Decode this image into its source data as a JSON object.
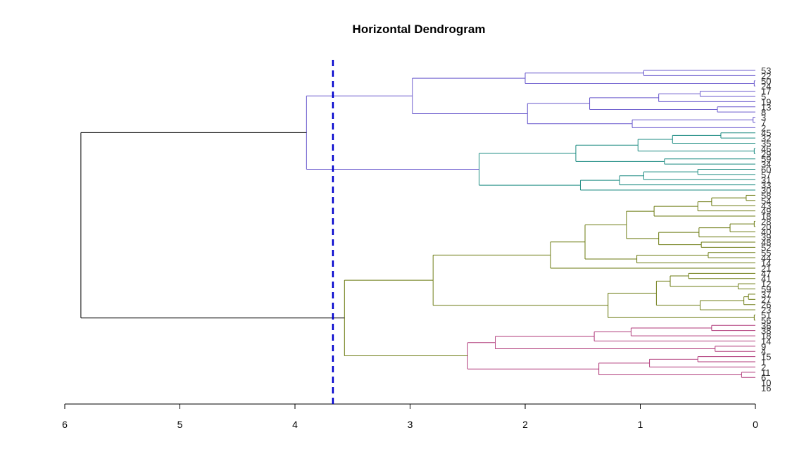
{
  "chart_data": {
    "type": "dendrogram",
    "orientation": "horizontal",
    "title": "Horizontal Dendrogram",
    "xlabel": "",
    "ylabel": "",
    "x_ticks": [
      6,
      5,
      4,
      3,
      2,
      1,
      0
    ],
    "xlim": [
      6,
      0
    ],
    "cut_height": 3.67,
    "cut_color": "#0000cc",
    "root_color": "#000000",
    "cluster_colors": {
      "blue": "#6a5acd",
      "teal": "#1a8a80",
      "olive": "#6b7a10",
      "magenta": "#b03a7a"
    },
    "leaves": [
      "53",
      "22",
      "50",
      "24",
      "17",
      "5",
      "19",
      "13",
      "8",
      "3",
      "7",
      "2",
      "45",
      "32",
      "35",
      "46",
      "29",
      "59",
      "34",
      "60",
      "57",
      "31",
      "33",
      "30",
      "58",
      "54",
      "43",
      "49",
      "18",
      "28",
      "20",
      "40",
      "39",
      "48",
      "52",
      "55",
      "44",
      "14",
      "21",
      "47",
      "41",
      "12",
      "59",
      "37",
      "27",
      "26",
      "23",
      "51",
      "56",
      "36",
      "38",
      "18",
      "14",
      "9",
      "4",
      "15",
      "1",
      "2",
      "11",
      "6",
      "10",
      "16"
    ],
    "tree": {
      "h": 5.86,
      "c": "root",
      "ch": [
        {
          "h": 3.9,
          "c": "blue",
          "ch": [
            {
              "h": 2.98,
              "c": "blue",
              "ch": [
                {
                  "h": 2.0,
                  "c": "blue",
                  "ch": [
                    {
                      "h": 0.97,
                      "c": "blue",
                      "ch": [
                        0,
                        1
                      ]
                    },
                    {
                      "h": 0.01,
                      "c": "blue",
                      "ch": [
                        2,
                        3
                      ]
                    }
                  ]
                },
                {
                  "h": 1.98,
                  "c": "blue",
                  "ch": [
                    {
                      "h": 1.44,
                      "c": "blue",
                      "ch": [
                        {
                          "h": 0.84,
                          "c": "blue",
                          "ch": [
                            {
                              "h": 0.48,
                              "c": "blue",
                              "ch": [
                                4,
                                5
                              ]
                            },
                            6
                          ]
                        },
                        {
                          "h": 0.33,
                          "c": "blue",
                          "ch": [
                            7,
                            8
                          ]
                        }
                      ]
                    },
                    {
                      "h": 1.07,
                      "c": "blue",
                      "ch": [
                        {
                          "h": 0.02,
                          "c": "blue",
                          "ch": [
                            9,
                            10
                          ]
                        },
                        11
                      ]
                    }
                  ]
                }
              ]
            },
            {
              "h": 2.4,
              "c": "teal",
              "ch": [
                {
                  "h": 1.56,
                  "c": "teal",
                  "ch": [
                    {
                      "h": 1.02,
                      "c": "teal",
                      "ch": [
                        {
                          "h": 0.72,
                          "c": "teal",
                          "ch": [
                            {
                              "h": 0.3,
                              "c": "teal",
                              "ch": [
                                12,
                                13
                              ]
                            },
                            14
                          ]
                        },
                        {
                          "h": 0.01,
                          "c": "teal",
                          "ch": [
                            15,
                            16
                          ]
                        }
                      ]
                    },
                    {
                      "h": 0.79,
                      "c": "teal",
                      "ch": [
                        17,
                        18
                      ]
                    }
                  ]
                },
                {
                  "h": 1.52,
                  "c": "teal",
                  "ch": [
                    {
                      "h": 1.18,
                      "c": "teal",
                      "ch": [
                        {
                          "h": 0.97,
                          "c": "teal",
                          "ch": [
                            {
                              "h": 0.5,
                              "c": "teal",
                              "ch": [
                                19,
                                20
                              ]
                            },
                            21
                          ]
                        },
                        22
                      ]
                    },
                    23
                  ]
                }
              ]
            }
          ]
        },
        {
          "h": 3.57,
          "c": "olive",
          "ch": [
            {
              "h": 2.8,
              "c": "olive",
              "ch": [
                {
                  "h": 1.78,
                  "c": "olive",
                  "ch": [
                    {
                      "h": 1.48,
                      "c": "olive",
                      "ch": [
                        {
                          "h": 1.12,
                          "c": "olive",
                          "ch": [
                            {
                              "h": 0.88,
                              "c": "olive",
                              "ch": [
                                {
                                  "h": 0.5,
                                  "c": "olive",
                                  "ch": [
                                    {
                                      "h": 0.38,
                                      "c": "olive",
                                      "ch": [
                                        {
                                          "h": 0.08,
                                          "c": "olive",
                                          "ch": [
                                            24,
                                            25
                                          ]
                                        },
                                        26
                                      ]
                                    },
                                    27
                                  ]
                                },
                                28
                              ]
                            },
                            {
                              "h": 0.84,
                              "c": "olive",
                              "ch": [
                                {
                                  "h": 0.49,
                                  "c": "olive",
                                  "ch": [
                                    {
                                      "h": 0.22,
                                      "c": "olive",
                                      "ch": [
                                        {
                                          "h": 0.01,
                                          "c": "olive",
                                          "ch": [
                                            29,
                                            30
                                          ]
                                        },
                                        31
                                      ]
                                    },
                                    32
                                  ]
                                },
                                {
                                  "h": 0.47,
                                  "c": "olive",
                                  "ch": [
                                    33,
                                    34
                                  ]
                                }
                              ]
                            }
                          ]
                        },
                        {
                          "h": 1.03,
                          "c": "olive",
                          "ch": [
                            {
                              "h": 0.41,
                              "c": "olive",
                              "ch": [
                                35,
                                36
                              ]
                            },
                            37
                          ]
                        }
                      ]
                    },
                    38
                  ]
                },
                {
                  "h": 1.28,
                  "c": "olive",
                  "ch": [
                    {
                      "h": 0.86,
                      "c": "olive",
                      "ch": [
                        {
                          "h": 0.74,
                          "c": "olive",
                          "ch": [
                            {
                              "h": 0.58,
                              "c": "olive",
                              "ch": [
                                39,
                                40
                              ]
                            },
                            {
                              "h": 0.15,
                              "c": "olive",
                              "ch": [
                                41,
                                42
                              ]
                            }
                          ]
                        },
                        {
                          "h": 0.48,
                          "c": "olive",
                          "ch": [
                            {
                              "h": 0.1,
                              "c": "olive",
                              "ch": [
                                {
                                  "h": 0.06,
                                  "c": "olive",
                                  "ch": [
                                    43,
                                    44
                                  ]
                                },
                                45
                              ]
                            },
                            46
                          ]
                        }
                      ]
                    },
                    {
                      "h": 0.01,
                      "c": "olive",
                      "ch": [
                        47,
                        48
                      ]
                    }
                  ]
                }
              ]
            },
            {
              "h": 2.5,
              "c": "magenta",
              "ch": [
                {
                  "h": 2.26,
                  "c": "magenta",
                  "ch": [
                    {
                      "h": 1.4,
                      "c": "magenta",
                      "ch": [
                        {
                          "h": 1.08,
                          "c": "magenta",
                          "ch": [
                            {
                              "h": 0.38,
                              "c": "magenta",
                              "ch": [
                                49,
                                50
                              ]
                            },
                            51
                          ]
                        },
                        52
                      ]
                    },
                    {
                      "h": 0.35,
                      "c": "magenta",
                      "ch": [
                        53,
                        54
                      ]
                    }
                  ]
                },
                {
                  "h": 1.36,
                  "c": "magenta",
                  "ch": [
                    {
                      "h": 0.92,
                      "c": "magenta",
                      "ch": [
                        {
                          "h": 0.5,
                          "c": "magenta",
                          "ch": [
                            55,
                            56
                          ]
                        },
                        57
                      ]
                    },
                    {
                      "h": 0.12,
                      "c": "magenta",
                      "ch": [
                        58,
                        59
                      ]
                    }
                  ]
                }
              ]
            }
          ]
        }
      ]
    }
  }
}
